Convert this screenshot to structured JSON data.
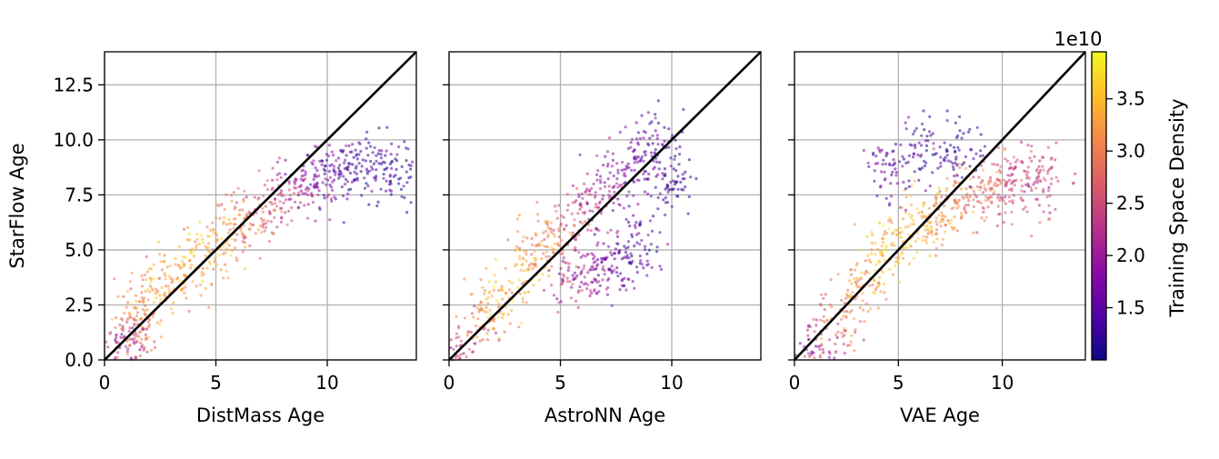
{
  "chart_data": [
    {
      "type": "scatter",
      "xlabel": "DistMass Age",
      "ylabel": "StarFlow Age",
      "xlim": [
        0,
        14
      ],
      "ylim": [
        0,
        14
      ],
      "xticks": [
        0,
        5,
        10
      ],
      "xtick_labels": [
        "0",
        "5",
        "10"
      ],
      "yticks": [
        0,
        2.5,
        5,
        7.5,
        10,
        12.5
      ],
      "ytick_labels": [
        "0.0",
        "2.5",
        "5.0",
        "7.5",
        "10.0",
        "12.5"
      ],
      "grid": true,
      "reference_line": [
        [
          0,
          0
        ],
        [
          14,
          14
        ]
      ],
      "color_by": "Training Space Density",
      "point_cloud": [
        {
          "x": 0.9,
          "y": 0.3,
          "density": 2.0
        },
        {
          "x": 1.2,
          "y": 1.0,
          "density": 2.6
        },
        {
          "x": 1.6,
          "y": 2.0,
          "density": 3.0
        },
        {
          "x": 2.2,
          "y": 3.0,
          "density": 3.2
        },
        {
          "x": 3.0,
          "y": 3.7,
          "density": 3.3
        },
        {
          "x": 4.0,
          "y": 4.6,
          "density": 3.4
        },
        {
          "x": 5.0,
          "y": 5.4,
          "density": 3.3
        },
        {
          "x": 6.0,
          "y": 6.2,
          "density": 3.0
        },
        {
          "x": 7.0,
          "y": 6.8,
          "density": 2.7
        },
        {
          "x": 8.0,
          "y": 7.4,
          "density": 2.3
        },
        {
          "x": 9.0,
          "y": 8.0,
          "density": 1.9
        },
        {
          "x": 10.0,
          "y": 8.5,
          "density": 1.6
        },
        {
          "x": 11.0,
          "y": 8.6,
          "density": 1.4
        },
        {
          "x": 12.0,
          "y": 8.7,
          "density": 1.3
        },
        {
          "x": 13.0,
          "y": 8.5,
          "density": 1.2
        }
      ]
    },
    {
      "type": "scatter",
      "xlabel": "AstroNN Age",
      "ylabel": "",
      "xlim": [
        0,
        14
      ],
      "ylim": [
        0,
        14
      ],
      "xticks": [
        0,
        5,
        10
      ],
      "xtick_labels": [
        "0",
        "5",
        "10"
      ],
      "yticks": [
        0,
        2.5,
        5,
        7.5,
        10,
        12.5
      ],
      "ytick_labels": [],
      "grid": true,
      "reference_line": [
        [
          0,
          0
        ],
        [
          14,
          14
        ]
      ],
      "color_by": "Training Space Density",
      "point_cloud": [
        {
          "x": 0.5,
          "y": 0.5,
          "density": 2.4
        },
        {
          "x": 1.5,
          "y": 1.8,
          "density": 3.1
        },
        {
          "x": 2.5,
          "y": 3.0,
          "density": 3.4
        },
        {
          "x": 3.5,
          "y": 4.2,
          "density": 3.3
        },
        {
          "x": 4.5,
          "y": 5.2,
          "density": 3.0
        },
        {
          "x": 5.5,
          "y": 6.2,
          "density": 2.6
        },
        {
          "x": 6.5,
          "y": 7.2,
          "density": 2.2
        },
        {
          "x": 7.5,
          "y": 8.3,
          "density": 1.9
        },
        {
          "x": 8.5,
          "y": 9.2,
          "density": 1.6
        },
        {
          "x": 9.5,
          "y": 9.8,
          "density": 1.4
        },
        {
          "x": 5.5,
          "y": 3.5,
          "density": 2.2
        },
        {
          "x": 6.5,
          "y": 4.0,
          "density": 1.9
        },
        {
          "x": 7.5,
          "y": 4.2,
          "density": 1.6
        },
        {
          "x": 8.5,
          "y": 5.2,
          "density": 1.4
        },
        {
          "x": 10.0,
          "y": 8.0,
          "density": 1.3
        }
      ]
    },
    {
      "type": "scatter",
      "xlabel": "VAE Age",
      "ylabel": "",
      "xlim": [
        0,
        14
      ],
      "ylim": [
        0,
        14
      ],
      "xticks": [
        0,
        5,
        10
      ],
      "xtick_labels": [
        "0",
        "5",
        "10"
      ],
      "yticks": [
        0,
        2.5,
        5,
        7.5,
        10,
        12.5
      ],
      "ytick_labels": [],
      "grid": true,
      "reference_line": [
        [
          0,
          0
        ],
        [
          14,
          14
        ]
      ],
      "color_by": "Training Space Density",
      "point_cloud": [
        {
          "x": 1.0,
          "y": 0.5,
          "density": 2.2
        },
        {
          "x": 2.0,
          "y": 1.8,
          "density": 2.8
        },
        {
          "x": 3.0,
          "y": 3.2,
          "density": 3.2
        },
        {
          "x": 4.0,
          "y": 4.5,
          "density": 3.4
        },
        {
          "x": 5.0,
          "y": 5.5,
          "density": 3.5
        },
        {
          "x": 6.0,
          "y": 6.2,
          "density": 3.4
        },
        {
          "x": 7.0,
          "y": 6.8,
          "density": 3.2
        },
        {
          "x": 8.0,
          "y": 7.2,
          "density": 3.0
        },
        {
          "x": 9.0,
          "y": 7.6,
          "density": 2.8
        },
        {
          "x": 10.0,
          "y": 7.9,
          "density": 2.6
        },
        {
          "x": 11.0,
          "y": 8.1,
          "density": 2.5
        },
        {
          "x": 12.0,
          "y": 8.2,
          "density": 2.4
        },
        {
          "x": 4.5,
          "y": 8.5,
          "density": 1.5
        },
        {
          "x": 6.0,
          "y": 9.5,
          "density": 1.3
        },
        {
          "x": 8.0,
          "y": 9.6,
          "density": 1.2
        }
      ]
    }
  ],
  "colorbar": {
    "label": "Training Space Density",
    "exponent_label": "1e10",
    "range": [
      1.0,
      3.95
    ],
    "ticks": [
      1.5,
      2.0,
      2.5,
      3.0,
      3.5
    ],
    "tick_labels": [
      "1.5",
      "2.0",
      "2.5",
      "3.0",
      "3.5"
    ],
    "colormap": "plasma",
    "colors": [
      "#0d0887",
      "#5302a3",
      "#8b0aa5",
      "#b83289",
      "#db5c68",
      "#f48849",
      "#febd2a",
      "#f0f921"
    ]
  }
}
